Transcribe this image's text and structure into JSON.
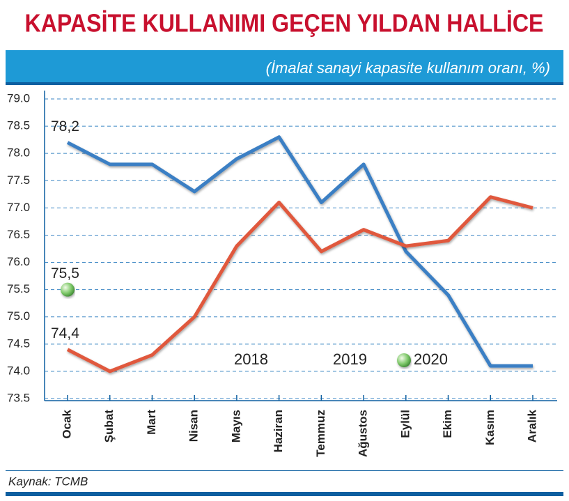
{
  "chart_data": {
    "type": "line",
    "title": "KAPASİTE KULLANIMI GEÇEN YILDAN HALLİCE",
    "subtitle": "(İmalat sanayi kapasite kullanım oranı, %)",
    "source": "Kaynak: TCMB",
    "categories": [
      "Ocak",
      "Şubat",
      "Mart",
      "Nisan",
      "Mayıs",
      "Haziran",
      "Temmuz",
      "Ağustos",
      "Eylül",
      "Ekim",
      "Kasım",
      "Aralık"
    ],
    "series": [
      {
        "name": "2018",
        "color": "#3b7fc4",
        "values": [
          78.2,
          77.8,
          77.8,
          77.3,
          77.9,
          78.3,
          77.1,
          77.8,
          76.2,
          75.4,
          74.1,
          74.1
        ],
        "value_labels": [
          "78,2",
          null,
          null,
          null,
          null,
          null,
          null,
          null,
          null,
          null,
          null,
          null
        ]
      },
      {
        "name": "2019",
        "color": "#e0583e",
        "values": [
          74.4,
          74.0,
          74.3,
          75.0,
          76.3,
          77.1,
          76.2,
          76.6,
          76.3,
          76.4,
          77.2,
          77.0
        ],
        "value_labels": [
          "74,4",
          null,
          null,
          null,
          null,
          null,
          null,
          null,
          null,
          null,
          null,
          null
        ]
      },
      {
        "name": "2020",
        "color": "#6cbf5a",
        "values": [
          75.5,
          null,
          null,
          null,
          null,
          null,
          null,
          null,
          null,
          null,
          null,
          null
        ],
        "value_labels": [
          "75,5",
          null,
          null,
          null,
          null,
          null,
          null,
          null,
          null,
          null,
          null,
          null
        ]
      }
    ],
    "ylim": [
      73.5,
      79.0
    ],
    "yticks": [
      73.5,
      {
        "value": 74.0,
        "label": "74.0"
      },
      74.5,
      {
        "value": 75.0,
        "label": "75.0"
      },
      75.5,
      {
        "value": 76.0,
        "label": "76.0"
      },
      76.5,
      {
        "value": 77.0,
        "label": "77.0"
      },
      77.5,
      {
        "value": 78.0,
        "label": "78.0"
      },
      78.5,
      {
        "value": 79.0,
        "label": "79.0"
      }
    ],
    "grid": true,
    "legend": "bottom"
  }
}
